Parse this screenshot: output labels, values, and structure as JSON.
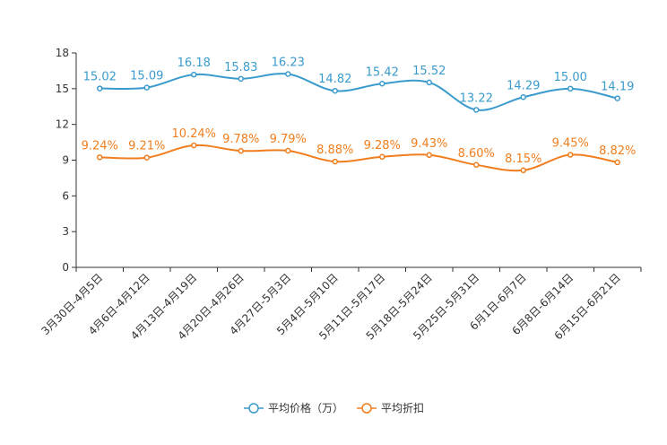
{
  "chart_data": {
    "type": "line",
    "categories": [
      "3月30日-4月5日",
      "4月6日-4月12日",
      "4月13日-4月19日",
      "4月20日-4月26日",
      "4月27日-5月3日",
      "5月4日-5月10日",
      "5月11日-5月17日",
      "5月18日-5月24日",
      "5月25日-5月31日",
      "6月1日-6月7日",
      "6月8日-6月14日",
      "6月15日-6月21日"
    ],
    "ylim": [
      0,
      18
    ],
    "yticks": [
      0,
      3,
      6,
      9,
      12,
      15,
      18
    ],
    "series": [
      {
        "name": "平均价格（万）",
        "color": "#3A9BCC",
        "values": [
          15.02,
          15.09,
          16.18,
          15.83,
          16.23,
          14.82,
          15.42,
          15.52,
          13.22,
          14.29,
          15.0,
          14.19
        ],
        "labels": [
          "15.02",
          "15.09",
          "16.18",
          "15.83",
          "16.23",
          "14.82",
          "15.42",
          "15.52",
          "13.22",
          "14.29",
          "15.00",
          "14.19"
        ]
      },
      {
        "name": "平均折扣",
        "color": "#F07E1E",
        "values": [
          9.24,
          9.21,
          10.24,
          9.78,
          9.79,
          8.88,
          9.28,
          9.43,
          8.6,
          8.15,
          9.45,
          8.82
        ],
        "labels": [
          "9.24%",
          "9.21%",
          "10.24%",
          "9.78%",
          "9.79%",
          "8.88%",
          "9.28%",
          "9.43%",
          "8.60%",
          "8.15%",
          "9.45%",
          "8.82%"
        ]
      }
    ],
    "legend_position": "bottom-center"
  }
}
